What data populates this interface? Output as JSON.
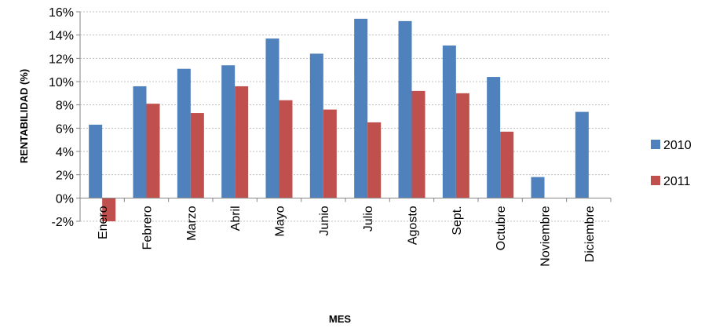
{
  "chart_data": {
    "type": "bar",
    "title": "",
    "xlabel": "MES",
    "ylabel": "RENTABILIDAD (%)",
    "categories": [
      "Enero",
      "Febrero",
      "Marzo",
      "Abril",
      "Mayo",
      "Junio",
      "Julio",
      "Agosto",
      "Sept.",
      "Octubre",
      "Noviembre",
      "Diciembre"
    ],
    "series": [
      {
        "name": "2010",
        "color": "#4f81bd",
        "values": [
          6.3,
          9.6,
          11.1,
          11.4,
          13.7,
          12.4,
          15.4,
          15.2,
          13.1,
          10.4,
          1.8,
          7.4
        ]
      },
      {
        "name": "2011",
        "color": "#c0504d",
        "values": [
          -2.0,
          8.1,
          7.3,
          9.6,
          8.4,
          7.6,
          6.5,
          9.2,
          9.0,
          5.7,
          null,
          null
        ]
      }
    ],
    "ylim": [
      -2,
      16
    ],
    "yticks": [
      -2,
      0,
      2,
      4,
      6,
      8,
      10,
      12,
      14,
      16
    ],
    "ytick_labels": [
      "-2%",
      "0%",
      "2%",
      "4%",
      "6%",
      "8%",
      "10%",
      "12%",
      "14%",
      "16%"
    ],
    "grid": true,
    "legend": "right"
  }
}
